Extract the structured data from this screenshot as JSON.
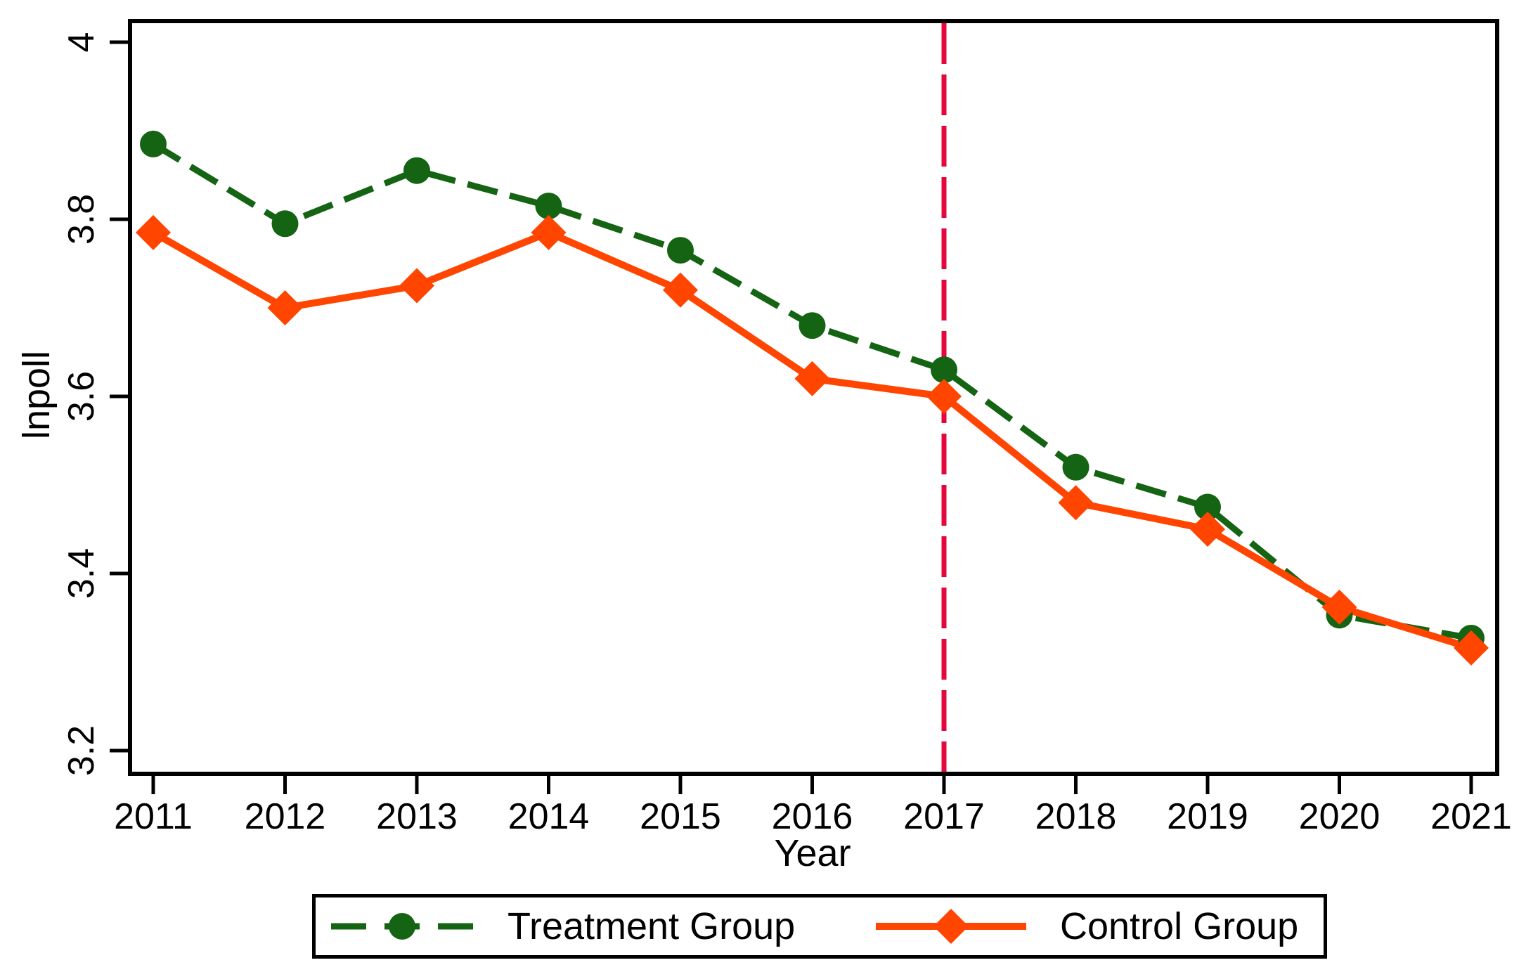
{
  "chart_data": {
    "type": "line",
    "title": "",
    "xlabel": "Year",
    "ylabel": "lnpoll",
    "x": [
      2011,
      2012,
      2013,
      2014,
      2015,
      2016,
      2017,
      2018,
      2019,
      2020,
      2021
    ],
    "xtick_labels": [
      "2011",
      "2012",
      "2013",
      "2014",
      "2015",
      "2016",
      "2017",
      "2018",
      "2019",
      "2020",
      "2021"
    ],
    "yticks": [
      3.2,
      3.4,
      3.6,
      3.8,
      4
    ],
    "ytick_labels": [
      "3.2",
      "3.4",
      "3.6",
      "3.8",
      "4"
    ],
    "ylim": [
      3.2,
      4.0
    ],
    "grid": false,
    "legend_position": "bottom",
    "series": [
      {
        "name": "Treatment Group",
        "marker": "circle",
        "line_style": "dashed",
        "color": "#146414",
        "values": [
          3.885,
          3.795,
          3.855,
          3.815,
          3.765,
          3.68,
          3.63,
          3.52,
          3.475,
          3.353,
          3.327
        ]
      },
      {
        "name": "Control Group",
        "marker": "diamond",
        "line_style": "solid",
        "color": "#FF4500",
        "values": [
          3.785,
          3.7,
          3.725,
          3.785,
          3.72,
          3.62,
          3.6,
          3.48,
          3.45,
          3.362,
          3.316
        ]
      }
    ],
    "reference_line": {
      "x": 2017,
      "style": "dashed",
      "color": "#E4063C"
    }
  }
}
